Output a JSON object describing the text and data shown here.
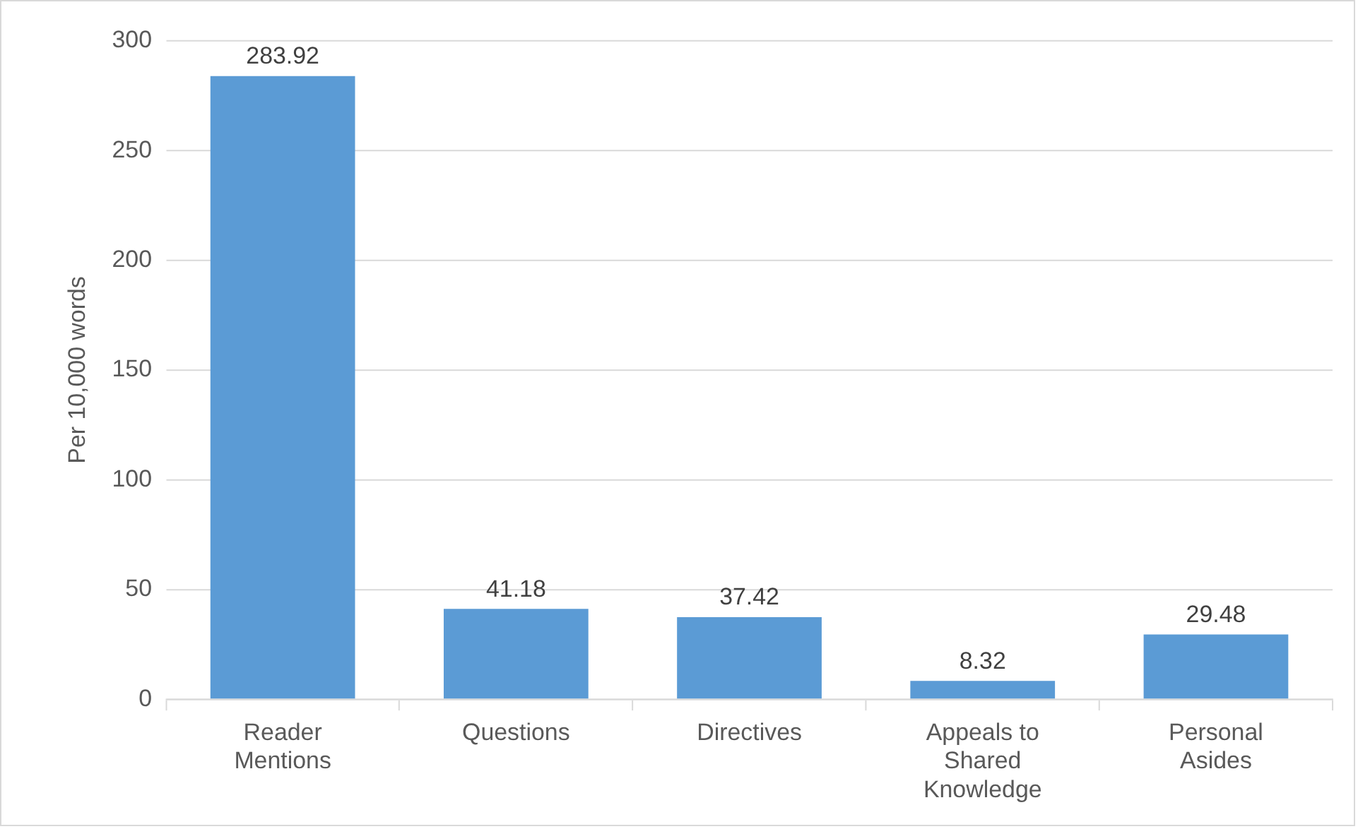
{
  "chart_data": {
    "type": "bar",
    "ylabel": "Per 10,000 words",
    "categories": [
      "Reader Mentions",
      "Questions",
      "Directives",
      "Appeals to Shared Knowledge",
      "Personal Asides"
    ],
    "values": [
      283.92,
      41.18,
      37.42,
      8.32,
      29.48
    ],
    "color": "#5b9bd5",
    "ylim": [
      0,
      300
    ],
    "yticks": [
      0,
      50,
      100,
      150,
      200,
      250,
      300
    ],
    "grid": "y",
    "legend": false,
    "data_labels": true
  }
}
